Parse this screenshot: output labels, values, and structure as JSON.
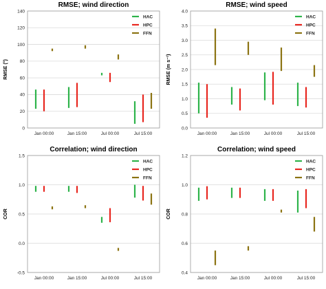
{
  "chart_data": [
    {
      "type": "range_bar",
      "title": "RMSE;  wind direction",
      "ylabel": "RMSE (°)",
      "ylim": [
        0,
        140
      ],
      "yticks": [
        0,
        20,
        40,
        60,
        80,
        100,
        120,
        140
      ],
      "tick_decimals": 0,
      "categories": [
        "Jan 00:00",
        "Jan 15:00",
        "Jul 00:00",
        "Jul 15:00"
      ],
      "legend": "top-right",
      "grid": true,
      "series": [
        {
          "name": "HAC",
          "color": "#2db34a",
          "ranges": [
            [
              23,
              46
            ],
            [
              24,
              49
            ],
            [
              63,
              66
            ],
            [
              5,
              32
            ]
          ]
        },
        {
          "name": "HPC",
          "color": "#e8261f",
          "ranges": [
            [
              20,
              46
            ],
            [
              25,
              54
            ],
            [
              55,
              66
            ],
            [
              7,
              40
            ]
          ]
        },
        {
          "name": "FFN",
          "color": "#8b7312",
          "ranges": [
            [
              92,
              95
            ],
            [
              95,
              99
            ],
            [
              82,
              88
            ],
            [
              23,
              42
            ]
          ]
        }
      ]
    },
    {
      "type": "range_bar",
      "title": "RMSE;  wind speed",
      "ylabel": "RMSE (m s⁻¹)",
      "ylim": [
        0,
        4
      ],
      "yticks": [
        0,
        0.5,
        1,
        1.5,
        2,
        2.5,
        3,
        3.5,
        4
      ],
      "tick_decimals": 1,
      "categories": [
        "Jan 00:00",
        "Jan 15:00",
        "Jul 00:00",
        "Jul 15:00"
      ],
      "legend": "top-right",
      "grid": true,
      "series": [
        {
          "name": "HAC",
          "color": "#2db34a",
          "ranges": [
            [
              0.5,
              1.55
            ],
            [
              0.8,
              1.4
            ],
            [
              0.95,
              1.9
            ],
            [
              0.75,
              1.55
            ]
          ]
        },
        {
          "name": "HPC",
          "color": "#e8261f",
          "ranges": [
            [
              0.35,
              1.5
            ],
            [
              0.6,
              1.35
            ],
            [
              0.8,
              1.92
            ],
            [
              0.7,
              1.4
            ]
          ]
        },
        {
          "name": "FFN",
          "color": "#8b7312",
          "ranges": [
            [
              2.15,
              3.4
            ],
            [
              2.5,
              2.95
            ],
            [
              1.95,
              2.75
            ],
            [
              1.75,
              2.15
            ]
          ]
        }
      ]
    },
    {
      "type": "range_bar",
      "title": "Correlation;  wind direction",
      "ylabel": "COR",
      "ylim": [
        -0.5,
        1.5
      ],
      "yticks": [
        -0.5,
        0,
        0.5,
        1,
        1.5
      ],
      "tick_decimals": 1,
      "categories": [
        "Jan 00:00",
        "Jan 15:00",
        "Jul 00:00",
        "Jul 15:00"
      ],
      "legend": "top-right",
      "grid": true,
      "series": [
        {
          "name": "HAC",
          "color": "#2db34a",
          "ranges": [
            [
              0.88,
              0.98
            ],
            [
              0.88,
              0.98
            ],
            [
              0.35,
              0.45
            ],
            [
              0.78,
              1.0
            ]
          ]
        },
        {
          "name": "HPC",
          "color": "#e8261f",
          "ranges": [
            [
              0.88,
              0.98
            ],
            [
              0.86,
              0.98
            ],
            [
              0.36,
              0.6
            ],
            [
              0.73,
              0.98
            ]
          ]
        },
        {
          "name": "FFN",
          "color": "#8b7312",
          "ranges": [
            [
              0.58,
              0.63
            ],
            [
              0.6,
              0.65
            ],
            [
              -0.13,
              -0.08
            ],
            [
              0.66,
              0.85
            ]
          ]
        }
      ]
    },
    {
      "type": "range_bar",
      "title": "Correlation;  wind speed",
      "ylabel": "COR",
      "ylim": [
        0.4,
        1.2
      ],
      "yticks": [
        0.4,
        0.6,
        0.8,
        1.0,
        1.2
      ],
      "tick_decimals": 1,
      "categories": [
        "Jan 00:00",
        "Jan 15:00",
        "Jul 00:00",
        "Jul 15:00"
      ],
      "legend": "top-right",
      "grid": true,
      "series": [
        {
          "name": "HAC",
          "color": "#2db34a",
          "ranges": [
            [
              0.89,
              0.98
            ],
            [
              0.91,
              0.98
            ],
            [
              0.89,
              0.97
            ],
            [
              0.81,
              0.96
            ]
          ]
        },
        {
          "name": "HPC",
          "color": "#e8261f",
          "ranges": [
            [
              0.9,
              0.99
            ],
            [
              0.91,
              0.98
            ],
            [
              0.89,
              0.97
            ],
            [
              0.84,
              0.97
            ]
          ]
        },
        {
          "name": "FFN",
          "color": "#8b7312",
          "ranges": [
            [
              0.45,
              0.55
            ],
            [
              0.55,
              0.58
            ],
            [
              0.81,
              0.83
            ],
            [
              0.68,
              0.78
            ]
          ]
        }
      ]
    }
  ]
}
